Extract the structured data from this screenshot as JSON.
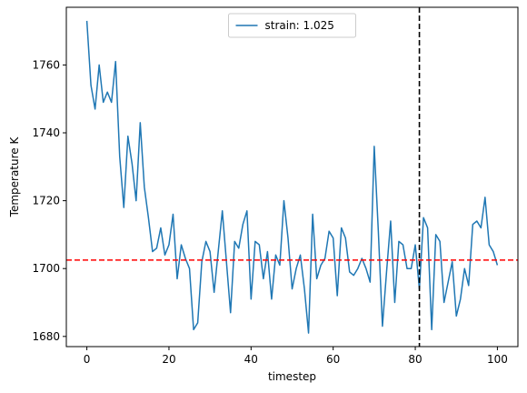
{
  "chart_data": {
    "type": "line",
    "xlabel": "timestep",
    "ylabel": "Temperature K",
    "xlim": [
      -5,
      105
    ],
    "ylim": [
      1677,
      1777
    ],
    "xticks": [
      0,
      20,
      40,
      60,
      80,
      100
    ],
    "yticks": [
      1680,
      1700,
      1720,
      1740,
      1760
    ],
    "grid": false,
    "legend_position": "upper center",
    "series": [
      {
        "name": "strain: 1.025",
        "color": "#1f77b4",
        "x": [
          0,
          1,
          2,
          3,
          4,
          5,
          6,
          7,
          8,
          9,
          10,
          11,
          12,
          13,
          14,
          15,
          16,
          17,
          18,
          19,
          20,
          21,
          22,
          23,
          24,
          25,
          26,
          27,
          28,
          29,
          30,
          31,
          32,
          33,
          34,
          35,
          36,
          37,
          38,
          39,
          40,
          41,
          42,
          43,
          44,
          45,
          46,
          47,
          48,
          49,
          50,
          51,
          52,
          53,
          54,
          55,
          56,
          57,
          58,
          59,
          60,
          61,
          62,
          63,
          64,
          65,
          66,
          67,
          68,
          69,
          70,
          71,
          72,
          73,
          74,
          75,
          76,
          77,
          78,
          79,
          80,
          81,
          82,
          83,
          84,
          85,
          86,
          87,
          88,
          89,
          90,
          91,
          92,
          93,
          94,
          95,
          96,
          97,
          98,
          99,
          100
        ],
        "y": [
          1773,
          1754,
          1747,
          1760,
          1749,
          1752,
          1749,
          1761,
          1733,
          1718,
          1739,
          1731,
          1720,
          1743,
          1724,
          1715,
          1705,
          1706,
          1712,
          1704,
          1707,
          1716,
          1697,
          1707,
          1703,
          1700,
          1682,
          1684,
          1702,
          1708,
          1705,
          1693,
          1705,
          1717,
          1702,
          1687,
          1708,
          1706,
          1713,
          1717,
          1691,
          1708,
          1707,
          1697,
          1705,
          1691,
          1704,
          1701,
          1720,
          1709,
          1694,
          1700,
          1704,
          1694,
          1681,
          1716,
          1697,
          1701,
          1703,
          1711,
          1709,
          1692,
          1712,
          1709,
          1699,
          1698,
          1700,
          1703,
          1700,
          1696,
          1736,
          1711,
          1683,
          1699,
          1714,
          1690,
          1708,
          1707,
          1700,
          1700,
          1707,
          1694,
          1715,
          1712,
          1682,
          1710,
          1708,
          1690,
          1696,
          1702,
          1686,
          1691,
          1700,
          1695,
          1713,
          1714,
          1712,
          1721,
          1707,
          1705,
          1701
        ]
      }
    ],
    "reference_lines": [
      {
        "orientation": "horizontal",
        "value": 1702.5,
        "color": "#ff0000",
        "style": "dashed"
      },
      {
        "orientation": "vertical",
        "value": 81,
        "color": "#000000",
        "style": "dashed"
      }
    ]
  }
}
